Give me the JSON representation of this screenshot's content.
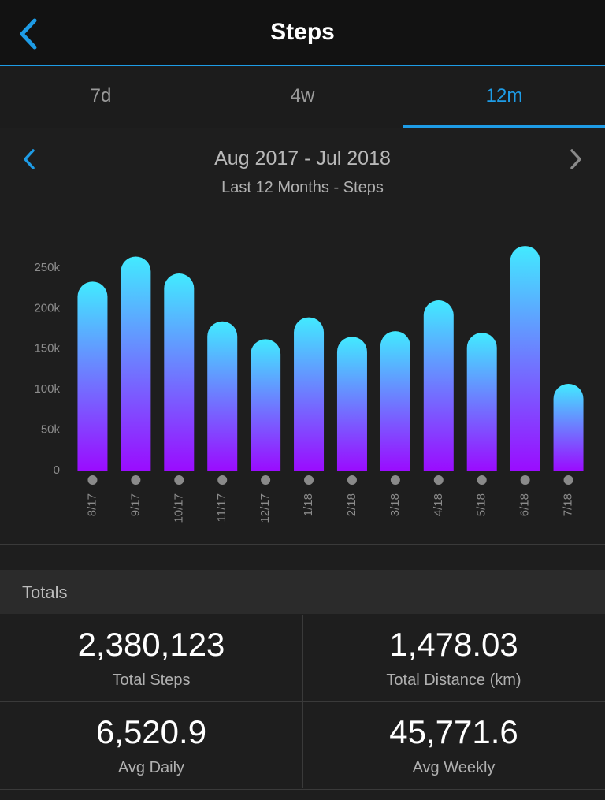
{
  "header": {
    "title": "Steps"
  },
  "tabs": [
    "7d",
    "4w",
    "12m"
  ],
  "range": {
    "title": "Aug 2017 - Jul 2018",
    "subtitle": "Last 12 Months - Steps"
  },
  "chart_data": {
    "type": "bar",
    "categories": [
      "8/17",
      "9/17",
      "10/17",
      "11/17",
      "12/17",
      "1/18",
      "2/18",
      "3/18",
      "4/18",
      "5/18",
      "6/18",
      "7/18"
    ],
    "values": [
      233000,
      264000,
      243000,
      184000,
      162000,
      189000,
      165000,
      172000,
      210000,
      170000,
      277000,
      107000
    ],
    "ylim": [
      0,
      280000
    ],
    "yticks": [
      0,
      {
        "value": 50000,
        "label": "50k"
      },
      {
        "value": 100000,
        "label": "100k"
      },
      {
        "value": 150000,
        "label": "150k"
      },
      {
        "value": 200000,
        "label": "200k"
      },
      {
        "value": 250000,
        "label": "250k"
      }
    ],
    "colors": [
      "#42eaff",
      "#9a0cff"
    ]
  },
  "totals": {
    "title": "Totals",
    "items": [
      {
        "value": "2,380,123",
        "label": "Total Steps"
      },
      {
        "value": "1,478.03",
        "label": "Total Distance (km)"
      },
      {
        "value": "6,520.9",
        "label": "Avg Daily"
      },
      {
        "value": "45,771.6",
        "label": "Avg Weekly"
      }
    ]
  }
}
